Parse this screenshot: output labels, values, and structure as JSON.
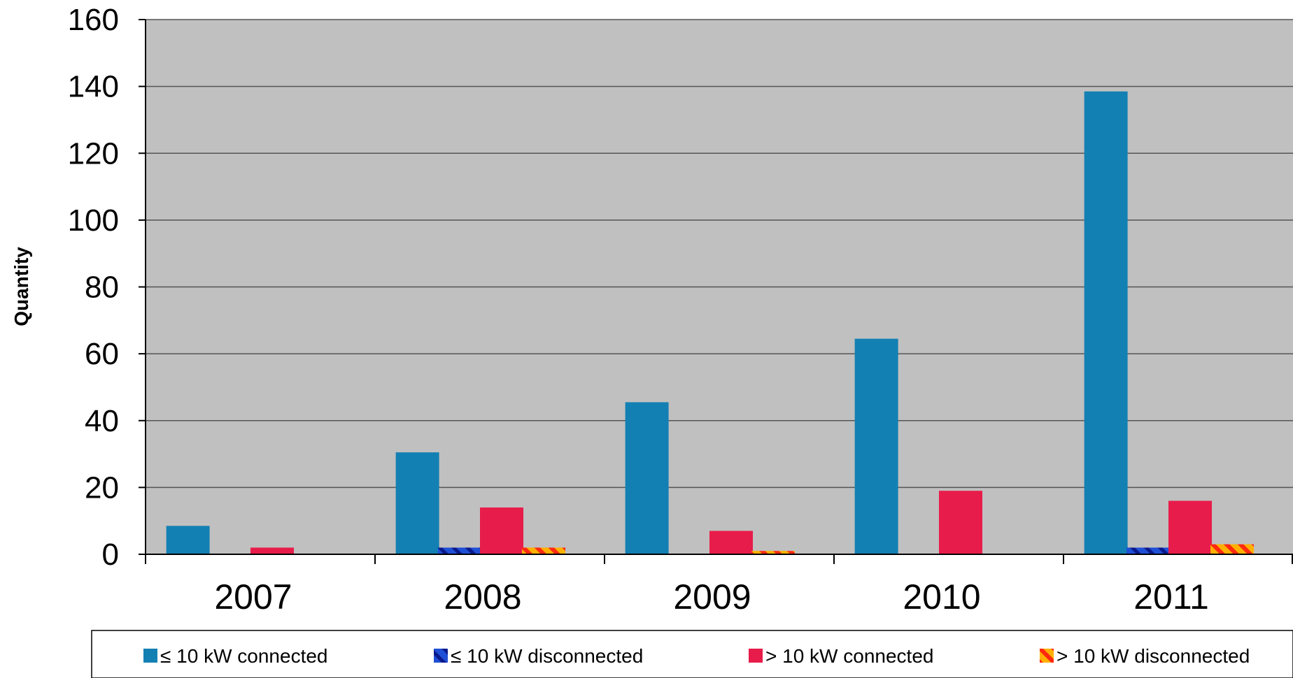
{
  "chart_data": {
    "type": "bar",
    "title": "",
    "xlabel": "",
    "ylabel": "Quantity",
    "ylim": [
      0,
      160
    ],
    "yticks": [
      0,
      20,
      40,
      60,
      80,
      100,
      120,
      140,
      160
    ],
    "grid": true,
    "legend_position": "bottom",
    "categories": [
      "2007",
      "2008",
      "2009",
      "2010",
      "2011"
    ],
    "series": [
      {
        "name": "≤ 10 kW connected",
        "values": [
          8.5,
          30.5,
          45.5,
          64.5,
          138.5
        ],
        "color": "#1380b3",
        "pattern": "solid"
      },
      {
        "name": "≤ 10 kW disconnected",
        "values": [
          0,
          2,
          0,
          0,
          2
        ],
        "color": "#1f4fd6",
        "pattern": "hatched"
      },
      {
        "name": "> 10 kW connected",
        "values": [
          2,
          14,
          7,
          19,
          16
        ],
        "color": "#e81c4a",
        "pattern": "solid"
      },
      {
        "name": "> 10 kW disconnected",
        "values": [
          0,
          2,
          1,
          0,
          3
        ],
        "color": "#ff7a10",
        "pattern": "hatched"
      }
    ],
    "plot_background": "#c0c0c0",
    "grid_color": "#555555"
  }
}
